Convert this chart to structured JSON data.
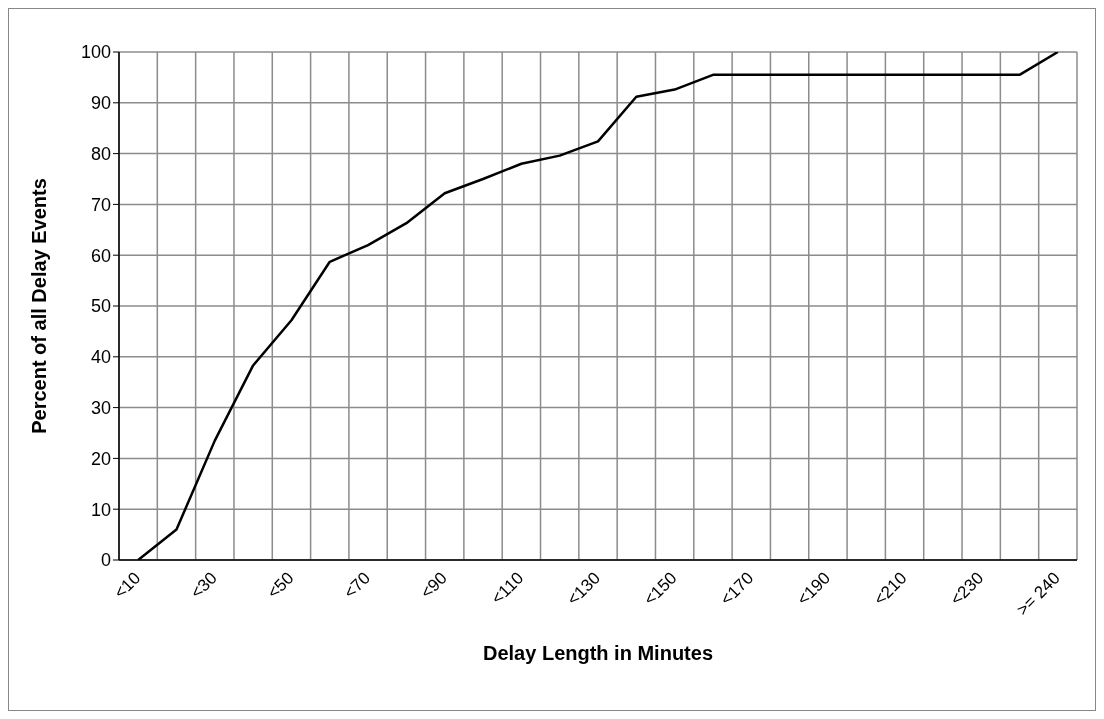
{
  "chart_data": {
    "type": "line",
    "xlabel": "Delay Length in Minutes",
    "ylabel": "Percent of all Delay Events",
    "categories": [
      "<10",
      null,
      "<30",
      null,
      "<50",
      null,
      "<70",
      null,
      "<90",
      null,
      "<110",
      null,
      "<130",
      null,
      "<150",
      null,
      "<170",
      null,
      "<190",
      null,
      "<210",
      null,
      "<230",
      null,
      ">= 240"
    ],
    "series": [
      {
        "color": "#000000",
        "values": [
          0,
          6,
          23.5,
          38.3,
          47.2,
          58.7,
          62,
          66.3,
          72.2,
          75,
          78,
          79.6,
          82.4,
          91.2,
          92.6,
          95.5,
          95.5,
          95.5,
          95.5,
          95.5,
          95.5,
          95.5,
          95.5,
          95.5,
          100
        ]
      }
    ],
    "ylim": [
      0,
      100
    ],
    "yticks": [
      0,
      10,
      20,
      30,
      40,
      50,
      60,
      70,
      80,
      90,
      100
    ],
    "grid": true,
    "marker": "none",
    "line_style": "solid"
  }
}
